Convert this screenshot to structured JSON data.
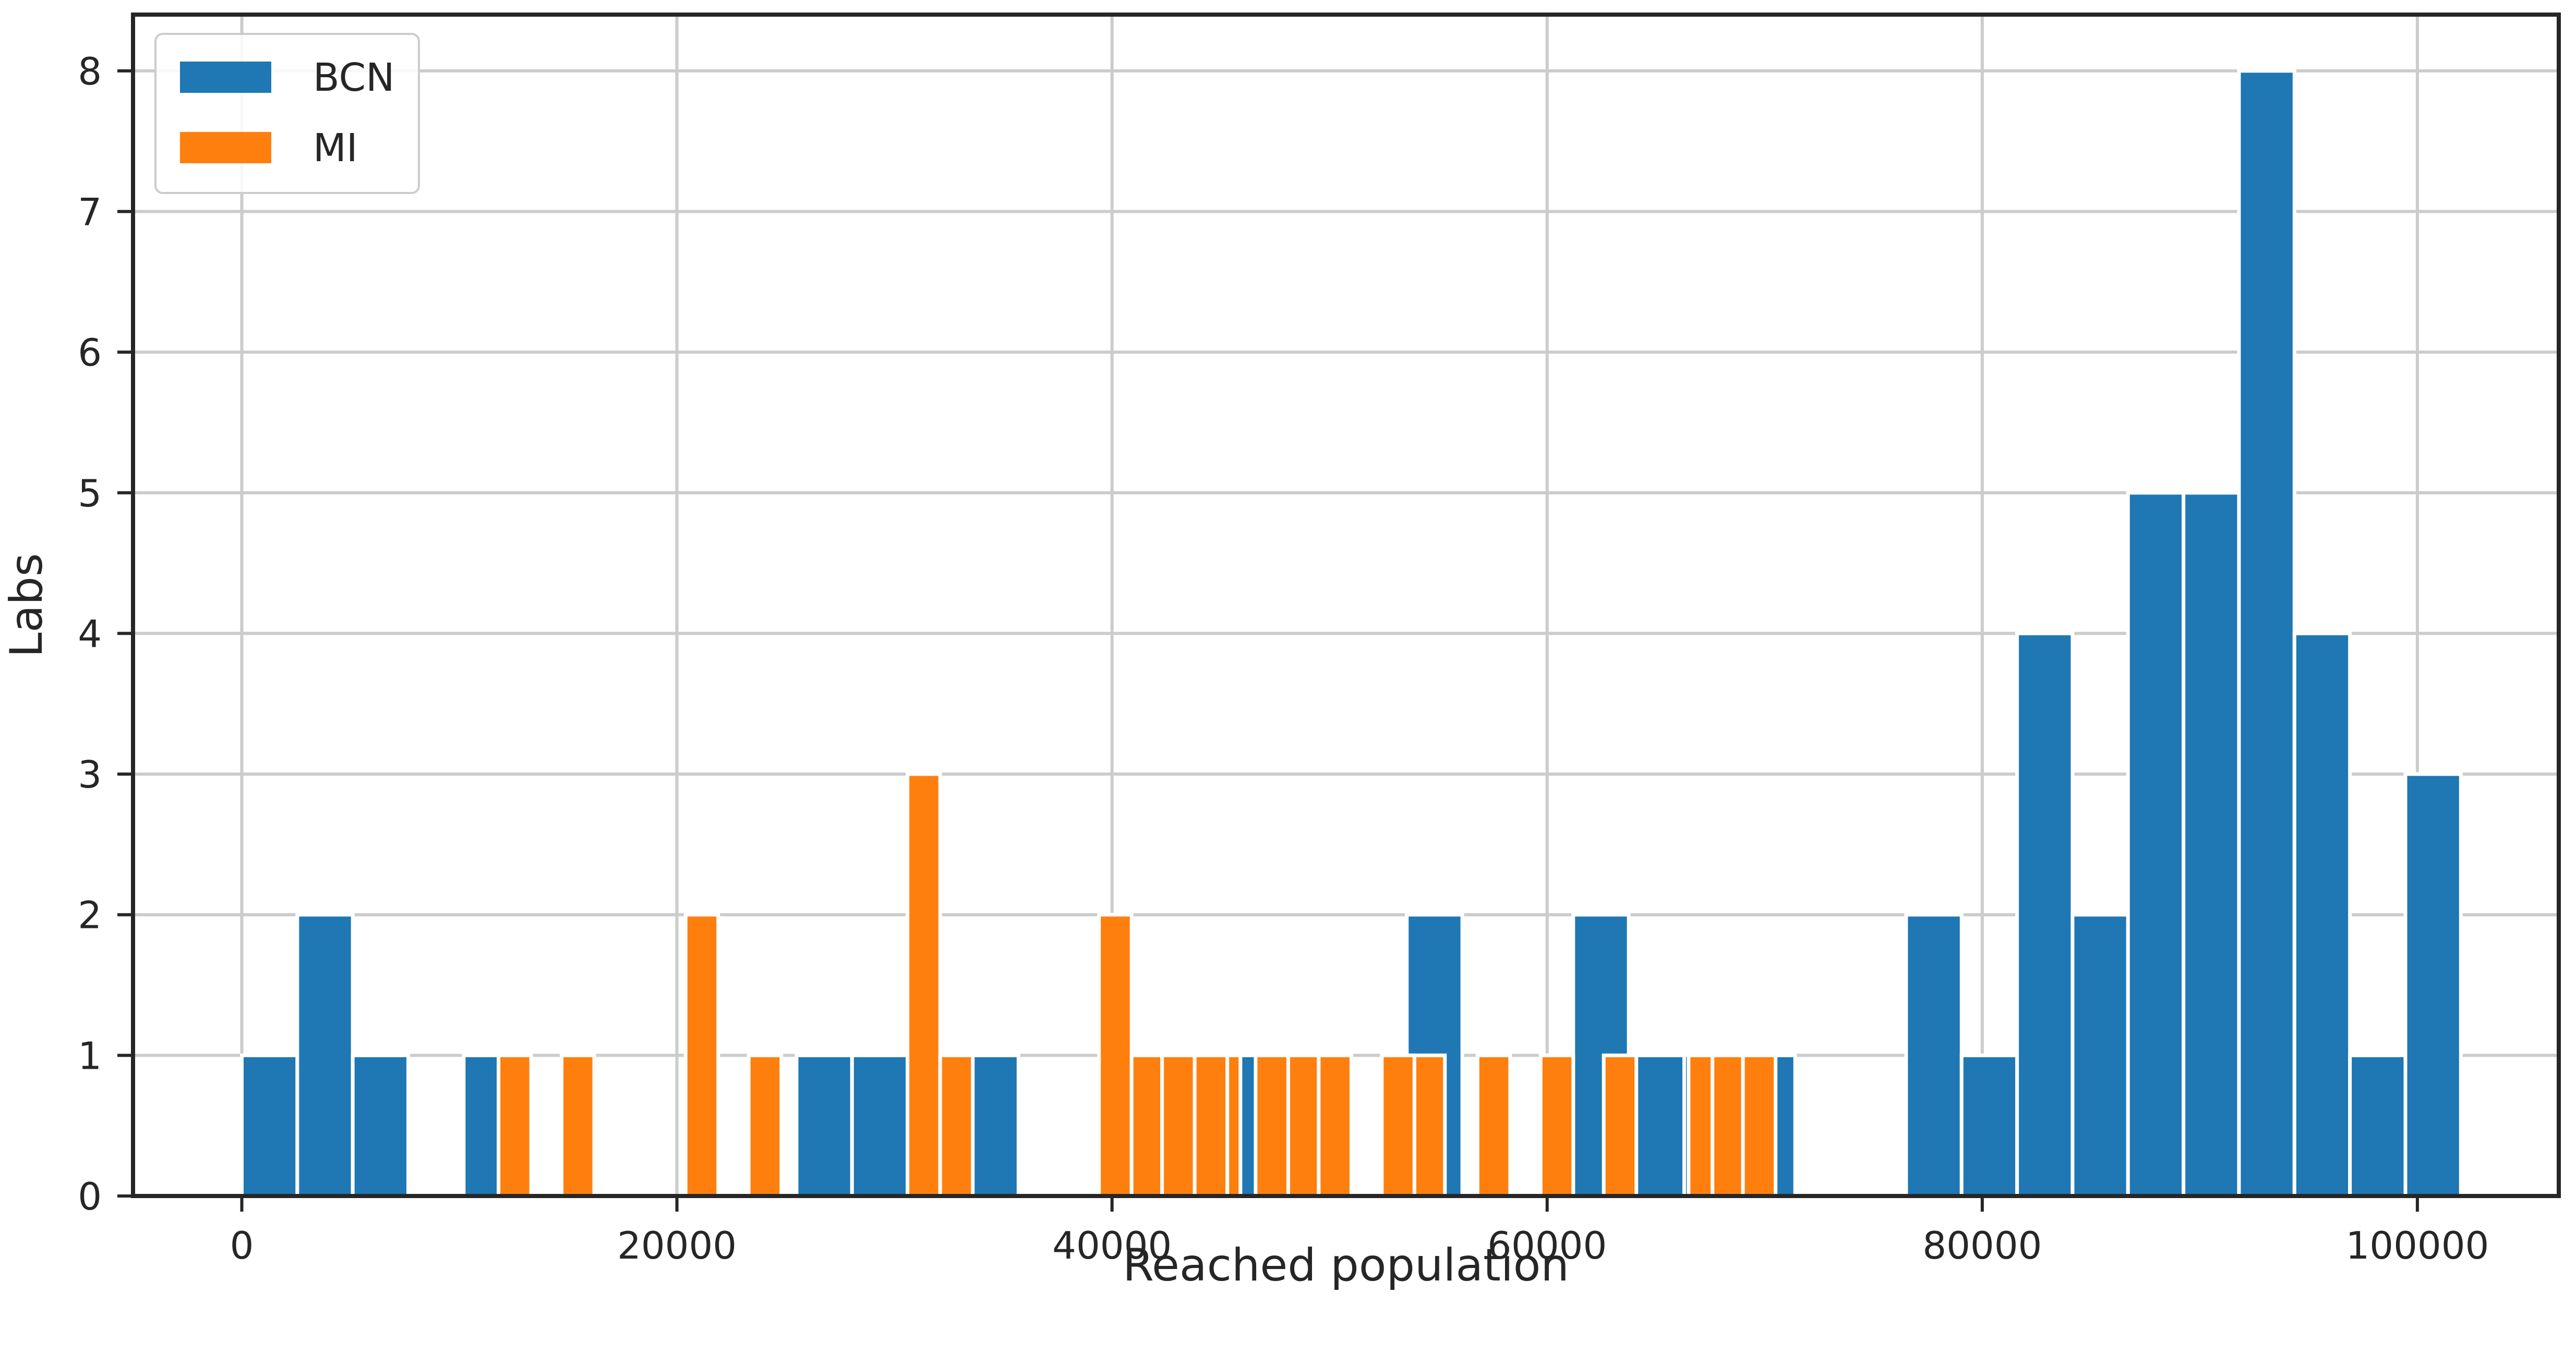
{
  "chart_data": {
    "type": "bar",
    "xlabel": "Reached population",
    "ylabel": "Labs",
    "xlim": [
      -5000,
      106500
    ],
    "ylim": [
      0,
      8.4
    ],
    "xticks": [
      0,
      20000,
      40000,
      60000,
      80000,
      100000
    ],
    "yticks": [
      0,
      1,
      2,
      3,
      4,
      5,
      6,
      7,
      8
    ],
    "grid": true,
    "legend_position": "top-left",
    "series": [
      {
        "name": "BCN",
        "color": "#1f77b4",
        "bins": [
          {
            "x0": 0,
            "x1": 2550,
            "value": 1
          },
          {
            "x0": 2550,
            "x1": 5100,
            "value": 2
          },
          {
            "x0": 5100,
            "x1": 7650,
            "value": 1
          },
          {
            "x0": 10200,
            "x1": 12750,
            "value": 1
          },
          {
            "x0": 25500,
            "x1": 28050,
            "value": 1
          },
          {
            "x0": 28050,
            "x1": 30600,
            "value": 1
          },
          {
            "x0": 33150,
            "x1": 35700,
            "value": 1
          },
          {
            "x0": 45900,
            "x1": 48450,
            "value": 1
          },
          {
            "x0": 53550,
            "x1": 56100,
            "value": 2
          },
          {
            "x0": 61200,
            "x1": 63750,
            "value": 2
          },
          {
            "x0": 63750,
            "x1": 66300,
            "value": 1
          },
          {
            "x0": 66300,
            "x1": 68850,
            "value": 1
          },
          {
            "x0": 68850,
            "x1": 71400,
            "value": 1
          },
          {
            "x0": 76500,
            "x1": 79050,
            "value": 2
          },
          {
            "x0": 79050,
            "x1": 81600,
            "value": 1
          },
          {
            "x0": 81600,
            "x1": 84150,
            "value": 4
          },
          {
            "x0": 84150,
            "x1": 86700,
            "value": 2
          },
          {
            "x0": 86700,
            "x1": 89250,
            "value": 5
          },
          {
            "x0": 89250,
            "x1": 91800,
            "value": 5
          },
          {
            "x0": 91800,
            "x1": 94350,
            "value": 8
          },
          {
            "x0": 94350,
            "x1": 96900,
            "value": 4
          },
          {
            "x0": 96900,
            "x1": 99450,
            "value": 1
          },
          {
            "x0": 99450,
            "x1": 102000,
            "value": 3
          }
        ]
      },
      {
        "name": "MI",
        "color": "#ff7f0e",
        "bins": [
          {
            "x0": 11800,
            "x1": 13300,
            "value": 1
          },
          {
            "x0": 14700,
            "x1": 16200,
            "value": 1
          },
          {
            "x0": 20400,
            "x1": 21900,
            "value": 2
          },
          {
            "x0": 23300,
            "x1": 24800,
            "value": 1
          },
          {
            "x0": 30600,
            "x1": 32100,
            "value": 3
          },
          {
            "x0": 32100,
            "x1": 33600,
            "value": 1
          },
          {
            "x0": 39400,
            "x1": 40900,
            "value": 2
          },
          {
            "x0": 40900,
            "x1": 42300,
            "value": 1
          },
          {
            "x0": 42300,
            "x1": 43800,
            "value": 1
          },
          {
            "x0": 43800,
            "x1": 45300,
            "value": 1
          },
          {
            "x0": 45300,
            "x1": 45900,
            "value": 1
          },
          {
            "x0": 46600,
            "x1": 48100,
            "value": 1
          },
          {
            "x0": 48100,
            "x1": 49500,
            "value": 1
          },
          {
            "x0": 49500,
            "x1": 51000,
            "value": 1
          },
          {
            "x0": 52400,
            "x1": 53900,
            "value": 1
          },
          {
            "x0": 53900,
            "x1": 55300,
            "value": 1
          },
          {
            "x0": 56800,
            "x1": 58300,
            "value": 1
          },
          {
            "x0": 59700,
            "x1": 61200,
            "value": 1
          },
          {
            "x0": 62600,
            "x1": 64100,
            "value": 1
          },
          {
            "x0": 66500,
            "x1": 67600,
            "value": 1
          },
          {
            "x0": 67600,
            "x1": 69000,
            "value": 1
          },
          {
            "x0": 69000,
            "x1": 70500,
            "value": 1
          }
        ]
      }
    ]
  }
}
